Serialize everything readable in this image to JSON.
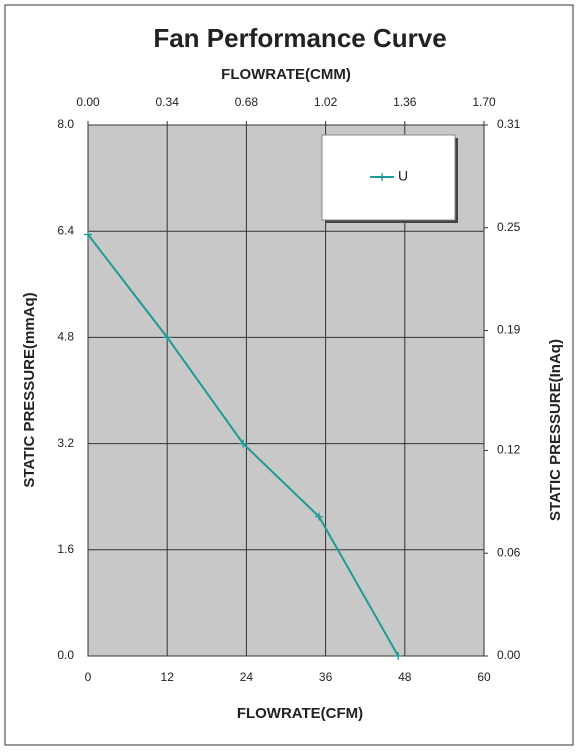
{
  "chart_data": {
    "type": "line",
    "title": "Fan Performance Curve",
    "x_label": "FLOWRATE(CFM)",
    "x2_label": "FLOWRATE(CMM)",
    "y_label": "STATIC PRESSURE(mmAq)",
    "y2_label": "STATIC PRESSURE(InAq)",
    "xlim": [
      0,
      60
    ],
    "xticks": [
      0,
      12,
      24,
      36,
      48,
      60
    ],
    "x2lim": [
      0,
      1.7
    ],
    "x2ticks": [
      {
        "value": 0,
        "label": "0.00"
      },
      0.34,
      0.68,
      1.02,
      1.36,
      {
        "value": 1.7,
        "label": "1.70"
      }
    ],
    "ylim": [
      0,
      8
    ],
    "yticks": [
      {
        "value": 0,
        "label": "0.0"
      },
      1.6,
      3.2,
      4.8,
      6.4,
      {
        "value": 8,
        "label": "8.0"
      }
    ],
    "y2lim": [
      0,
      0.31
    ],
    "y2ticks": [
      {
        "value": 0,
        "label": "0.00"
      },
      0.06,
      0.12,
      0.19,
      0.25,
      0.31
    ],
    "grid": true,
    "legend": "top-right",
    "series": [
      {
        "name": "U",
        "color": "#1f9a96",
        "x": [
          0,
          12,
          23.5,
          35,
          47
        ],
        "values": [
          6.35,
          4.8,
          3.2,
          2.1,
          0
        ]
      }
    ]
  }
}
